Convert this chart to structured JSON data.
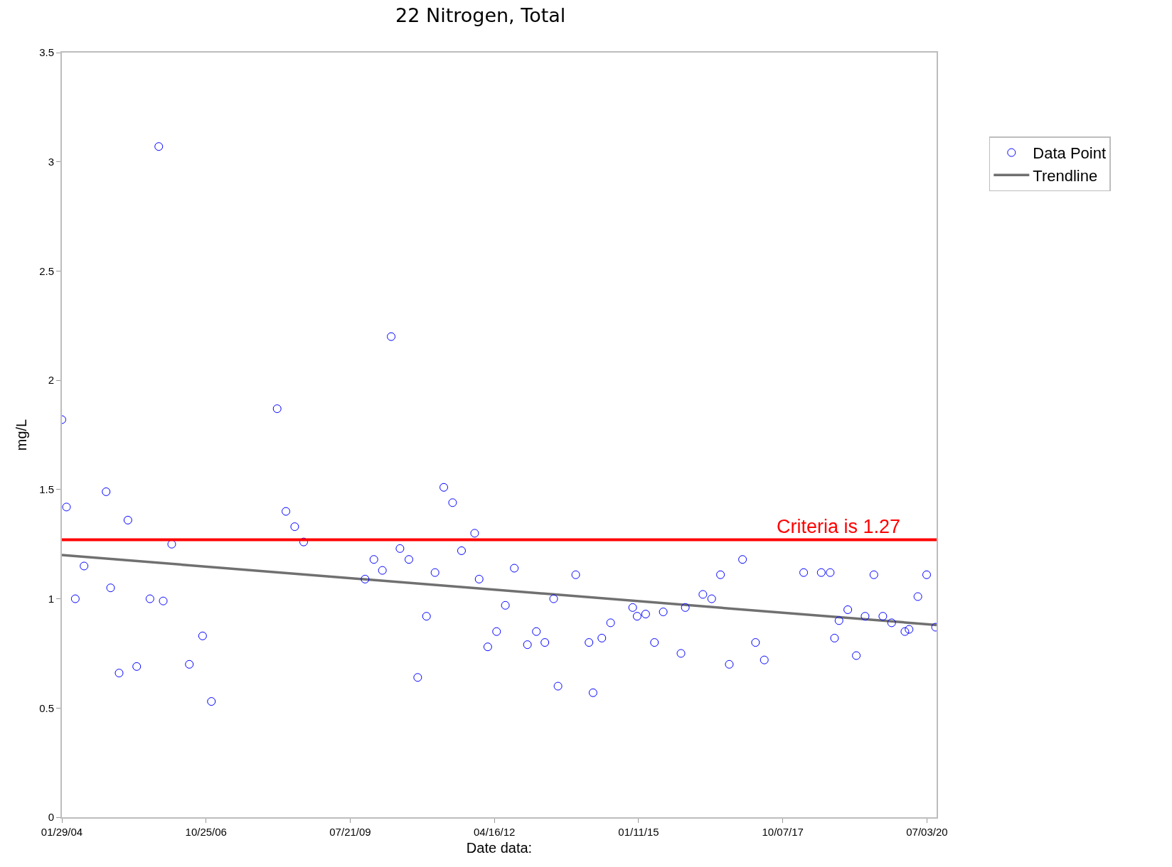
{
  "chart_data": {
    "type": "scatter",
    "title": "22 Nitrogen, Total",
    "xlabel": "Date data:",
    "ylabel": "mg/L",
    "xlim": [
      "2004-01-29",
      "2020-09-08"
    ],
    "xticks": [
      {
        "value": "2004-01-29",
        "label": "01/29/04"
      },
      {
        "value": "2006-10-25",
        "label": "10/25/06"
      },
      {
        "value": "2009-07-21",
        "label": "07/21/09"
      },
      {
        "value": "2012-04-16",
        "label": "04/16/12"
      },
      {
        "value": "2015-01-11",
        "label": "01/11/15"
      },
      {
        "value": "2017-10-07",
        "label": "10/07/17"
      },
      {
        "value": "2020-07-03",
        "label": "07/03/20"
      }
    ],
    "ylim": [
      0,
      3.5
    ],
    "yticks": [
      0,
      0.5,
      1,
      1.5,
      2,
      2.5,
      3,
      3.5
    ],
    "grid": false,
    "legend": "top right",
    "ref_lines": [
      {
        "axis": "y",
        "value": 1.27,
        "label": "Criteria is 1.27",
        "color": "#ff0000"
      }
    ],
    "series": [
      {
        "name": "Data Point",
        "marker": "circle",
        "color": "#0000ff",
        "x": [
          "2004-01-29",
          "2004-03",
          "2004-05",
          "2004-07",
          "2004-12",
          "2005-01",
          "2005-03",
          "2005-05",
          "2005-07",
          "2005-10",
          "2005-12",
          "2006-01",
          "2006-03",
          "2006-07",
          "2006-10",
          "2006-12",
          "2008-03",
          "2008-05",
          "2008-07",
          "2008-09",
          "2009-11",
          "2010-01",
          "2010-03",
          "2010-05",
          "2010-07",
          "2010-09",
          "2010-11",
          "2011-01",
          "2011-03",
          "2011-05",
          "2011-07",
          "2011-09",
          "2011-12",
          "2012-01",
          "2012-03",
          "2012-05",
          "2012-07",
          "2012-09",
          "2012-12",
          "2013-02",
          "2013-04",
          "2013-06",
          "2013-07",
          "2013-11",
          "2014-02",
          "2014-03",
          "2014-05",
          "2014-07",
          "2014-12",
          "2015-01",
          "2015-03",
          "2015-05",
          "2015-07",
          "2015-11",
          "2015-12",
          "2016-04",
          "2016-06",
          "2016-08",
          "2016-10",
          "2017-01",
          "2017-04",
          "2017-06",
          "2018-03",
          "2018-07",
          "2018-09",
          "2018-10",
          "2018-11",
          "2019-01",
          "2019-03",
          "2019-05",
          "2019-07",
          "2019-09",
          "2019-11",
          "2020-02",
          "2020-03",
          "2020-05",
          "2020-07",
          "2020-09"
        ],
        "values": [
          1.82,
          1.42,
          1.0,
          1.15,
          1.49,
          1.05,
          0.66,
          1.36,
          0.69,
          1.0,
          3.07,
          0.99,
          1.25,
          0.7,
          0.83,
          0.53,
          1.87,
          1.4,
          1.33,
          1.26,
          1.09,
          1.18,
          1.13,
          2.2,
          1.23,
          1.18,
          0.64,
          0.92,
          1.12,
          1.51,
          1.44,
          1.22,
          1.3,
          1.09,
          0.78,
          0.85,
          0.97,
          1.14,
          0.79,
          0.85,
          0.8,
          1.0,
          0.6,
          1.11,
          0.8,
          0.57,
          0.82,
          0.89,
          0.96,
          0.92,
          0.93,
          0.8,
          0.94,
          0.75,
          0.96,
          1.02,
          1.0,
          1.11,
          0.7,
          1.18,
          0.8,
          0.72,
          1.12,
          1.12,
          1.12,
          0.82,
          0.9,
          0.95,
          0.74,
          0.92,
          1.11,
          0.92,
          0.89,
          0.85,
          0.86,
          1.01,
          1.11,
          0.87
        ]
      },
      {
        "name": "Trendline",
        "type": "line",
        "marker": "none",
        "color": "#707070",
        "x": [
          "2004-01-29",
          "2020-09-08"
        ],
        "values": [
          1.2,
          0.88
        ]
      }
    ]
  }
}
